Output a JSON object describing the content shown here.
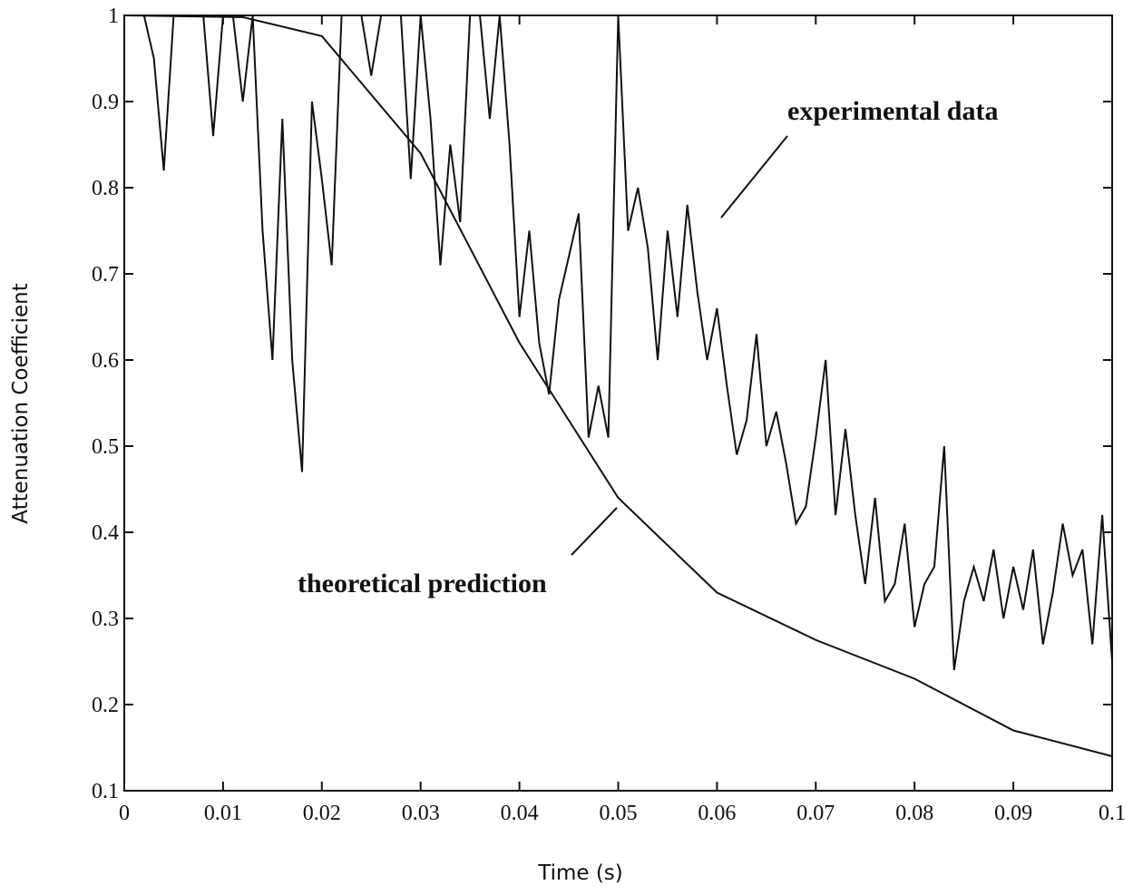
{
  "chart_data": {
    "type": "line",
    "xlabel": "Time (s)",
    "ylabel": "Attenuation Coefficient",
    "xlim": [
      0,
      0.1
    ],
    "ylim": [
      0.1,
      1
    ],
    "xticks": [
      0,
      0.01,
      0.02,
      0.03,
      0.04,
      0.05,
      0.06,
      0.07,
      0.08,
      0.09,
      0.1
    ],
    "yticks": [
      0.1,
      0.2,
      0.3,
      0.4,
      0.5,
      0.6,
      0.7,
      0.8,
      0.9,
      1
    ],
    "annotations": [
      "experimental  data",
      "theoretical prediction"
    ],
    "series": [
      {
        "color": "#111111",
        "x": [
          0,
          0.001,
          0.002,
          0.003,
          0.004,
          0.005,
          0.006,
          0.007,
          0.008,
          0.009,
          0.01,
          0.011,
          0.012,
          0.013,
          0.014,
          0.015,
          0.016,
          0.017,
          0.018,
          0.019,
          0.02,
          0.021,
          0.022,
          0.023,
          0.024,
          0.025,
          0.026,
          0.027,
          0.028,
          0.029,
          0.03,
          0.031,
          0.032,
          0.033,
          0.034,
          0.035,
          0.036,
          0.037,
          0.038,
          0.039,
          0.04,
          0.041,
          0.042,
          0.043,
          0.044,
          0.045,
          0.046,
          0.047,
          0.048,
          0.049,
          0.05,
          0.051,
          0.052,
          0.053,
          0.054,
          0.055,
          0.056,
          0.057,
          0.058,
          0.059,
          0.06,
          0.061,
          0.062,
          0.063,
          0.064,
          0.065,
          0.066,
          0.067,
          0.068,
          0.069,
          0.07,
          0.071,
          0.072,
          0.073,
          0.074,
          0.075,
          0.076,
          0.077,
          0.078,
          0.079,
          0.08,
          0.081,
          0.082,
          0.083,
          0.084,
          0.085,
          0.086,
          0.087,
          0.088,
          0.089,
          0.09,
          0.091,
          0.092,
          0.093,
          0.094,
          0.095,
          0.096,
          0.097,
          0.098,
          0.099,
          0.1
        ],
        "values": [
          1,
          1,
          1,
          0.95,
          0.82,
          1,
          1,
          1,
          1,
          0.86,
          1,
          1,
          0.9,
          1,
          0.75,
          0.6,
          0.88,
          0.6,
          0.47,
          0.9,
          0.81,
          0.71,
          1,
          1,
          1,
          0.93,
          1,
          1,
          1,
          0.81,
          1,
          0.88,
          0.71,
          0.85,
          0.76,
          1,
          1,
          0.88,
          1,
          0.85,
          0.65,
          0.75,
          0.62,
          0.56,
          0.67,
          0.72,
          0.77,
          0.51,
          0.57,
          0.51,
          1,
          0.75,
          0.8,
          0.73,
          0.6,
          0.75,
          0.65,
          0.78,
          0.68,
          0.6,
          0.66,
          0.57,
          0.49,
          0.53,
          0.63,
          0.5,
          0.54,
          0.48,
          0.41,
          0.43,
          0.51,
          0.6,
          0.42,
          0.52,
          0.42,
          0.34,
          0.44,
          0.32,
          0.34,
          0.41,
          0.29,
          0.34,
          0.36,
          0.5,
          0.24,
          0.32,
          0.36,
          0.32,
          0.38,
          0.3,
          0.36,
          0.31,
          0.38,
          0.27,
          0.33,
          0.41,
          0.35,
          0.38,
          0.27,
          0.42,
          0.25
        ]
      },
      {
        "color": "#111111",
        "x": [
          0,
          0.012,
          0.02,
          0.03,
          0.04,
          0.05,
          0.06,
          0.07,
          0.08,
          0.09,
          0.1
        ],
        "values": [
          1,
          0.998,
          0.976,
          0.84,
          0.62,
          0.44,
          0.33,
          0.275,
          0.23,
          0.17,
          0.14
        ]
      }
    ]
  }
}
